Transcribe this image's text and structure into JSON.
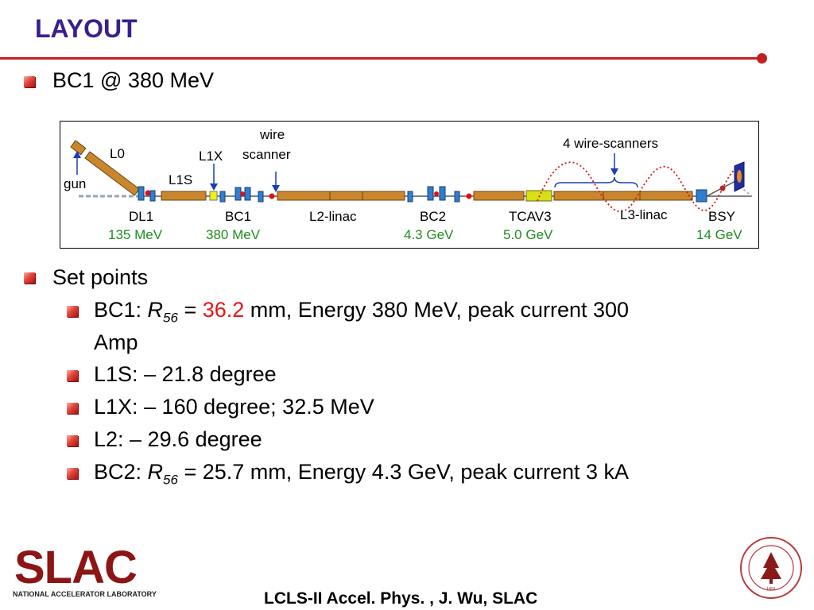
{
  "title": "LAYOUT",
  "bullets": {
    "b1": "BC1 @ 380 MeV",
    "b2": "Set points",
    "bc1_prefix": "BC1: ",
    "bc1_r": "R",
    "bc1_sub": "56",
    "bc1_eq": " = ",
    "bc1_value": "36.2",
    "bc1_rest": " mm, Energy 380 MeV, peak current 300",
    "bc1_cont": "Amp",
    "l1s": "L1S: – 21.8 degree",
    "l1x": "L1X: – 160 degree; 32.5 MeV",
    "l2": "L2: – 29.6 degree",
    "bc2_prefix": "BC2: ",
    "bc2_r": "R",
    "bc2_sub": "56",
    "bc2_rest": " = 25.7 mm, Energy 4.3 GeV, peak current 3 kA"
  },
  "diagram": {
    "labels": {
      "gun": "gun",
      "l0": "L0",
      "l1x": "L1X",
      "l1s": "L1S",
      "wire": "wire",
      "scanner": "scanner",
      "wire_scanners": "4 wire-scanners",
      "dl1": "DL1",
      "bc1": "BC1",
      "l2_linac": "L2-linac",
      "bc2": "BC2",
      "tcav3": "TCAV3",
      "l3_linac": "L3-linac",
      "bsy": "BSY"
    },
    "energies": {
      "dl1": "135 MeV",
      "bc1": "380 MeV",
      "bc2": "4.3 GeV",
      "tcav3": "5.0 GeV",
      "bsy": "14 GeV"
    }
  },
  "footer": "LCLS-II Accel. Phys. , J. Wu, SLAC",
  "logo": {
    "text": "SLAC",
    "subtitle": "NATIONAL ACCELERATOR LABORATORY"
  },
  "seal_text": "LELAND STANFORD JUNIOR UNIVERSITY",
  "seal_year": "1891"
}
